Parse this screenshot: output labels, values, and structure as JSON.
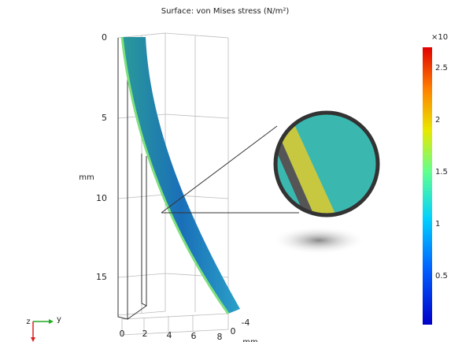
{
  "title": "Surface: von Mises stress (N/m²)",
  "vertical_axis": {
    "label": "mm",
    "ticks": [
      "0",
      "5",
      "10",
      "15"
    ]
  },
  "bottom_axis": {
    "ticks": [
      "0",
      "2",
      "4",
      "6",
      "8"
    ],
    "depth_ticks": [
      "0",
      "-4"
    ],
    "label": "mm"
  },
  "colorbar": {
    "exponent_label": "×10",
    "ticks": [
      "2.5",
      "2",
      "1.5",
      "1",
      "0.5"
    ]
  },
  "triad": {
    "z": "z",
    "y": "y"
  }
}
